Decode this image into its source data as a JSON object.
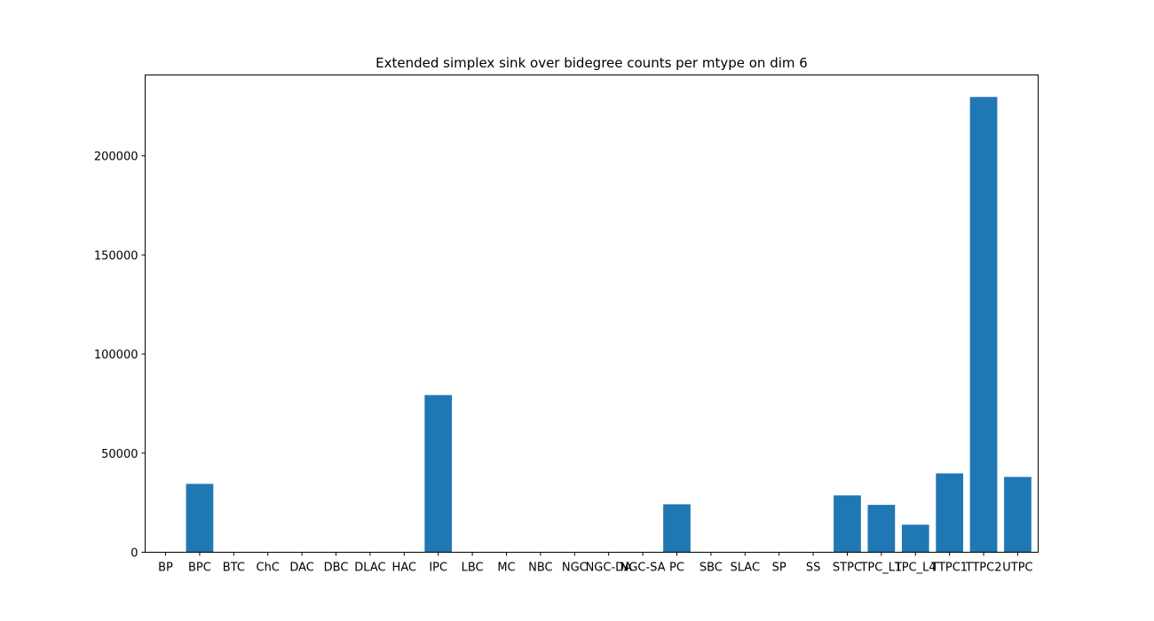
{
  "chart_data": {
    "type": "bar",
    "title": "Extended simplex sink over bidegree counts per mtype on dim 6",
    "xlabel": "",
    "ylabel": "",
    "categories": [
      "BP",
      "BPC",
      "BTC",
      "ChC",
      "DAC",
      "DBC",
      "DLAC",
      "HAC",
      "IPC",
      "LBC",
      "MC",
      "NBC",
      "NGC",
      "NGC-DA",
      "NGC-SA",
      "PC",
      "SBC",
      "SLAC",
      "SP",
      "SS",
      "STPC",
      "TPC_L1",
      "TPC_L4",
      "TTPC1",
      "TTPC2",
      "UTPC"
    ],
    "values": [
      0,
      34500,
      0,
      0,
      0,
      0,
      0,
      0,
      79300,
      0,
      0,
      0,
      0,
      0,
      0,
      24200,
      0,
      0,
      0,
      0,
      28700,
      23900,
      13900,
      39800,
      229700,
      38000
    ],
    "yticks": [
      0,
      50000,
      100000,
      150000,
      200000
    ],
    "ylim": [
      0,
      240800
    ],
    "bar_color": "#1f77b4",
    "grid": false
  }
}
